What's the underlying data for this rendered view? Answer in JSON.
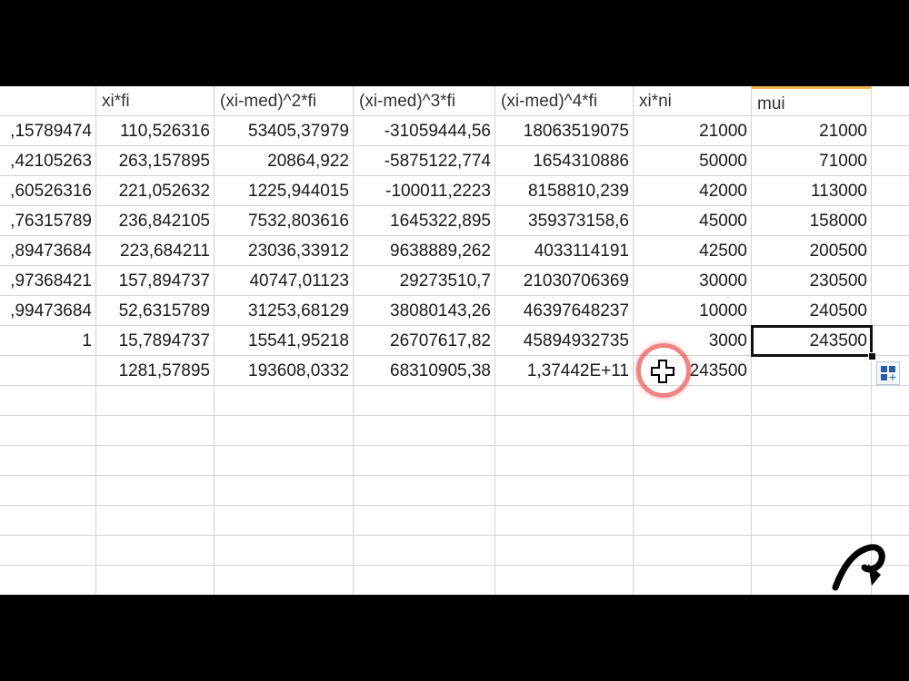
{
  "columns": [
    {
      "key": "A",
      "header": ""
    },
    {
      "key": "B",
      "header": "xi*fi"
    },
    {
      "key": "C",
      "header": "(xi-med)^2*fi"
    },
    {
      "key": "D",
      "header": "(xi-med)^3*fi"
    },
    {
      "key": "E",
      "header": "(xi-med)^4*fi"
    },
    {
      "key": "F",
      "header": "xi*ni"
    },
    {
      "key": "G",
      "header": "mui"
    },
    {
      "key": "H",
      "header": ""
    }
  ],
  "rows": [
    [
      ",15789474",
      "110,526316",
      "53405,37979",
      "-31059444,56",
      "18063519075",
      "21000",
      "21000",
      ""
    ],
    [
      ",42105263",
      "263,157895",
      "20864,922",
      "-5875122,774",
      "1654310886",
      "50000",
      "71000",
      ""
    ],
    [
      ",60526316",
      "221,052632",
      "1225,944015",
      "-100011,2223",
      "8158810,239",
      "42000",
      "113000",
      ""
    ],
    [
      ",76315789",
      "236,842105",
      "7532,803616",
      "1645322,895",
      "359373158,6",
      "45000",
      "158000",
      ""
    ],
    [
      ",89473684",
      "223,684211",
      "23036,33912",
      "9638889,262",
      "4033114191",
      "42500",
      "200500",
      ""
    ],
    [
      ",97368421",
      "157,894737",
      "40747,01123",
      "29273510,7",
      "21030706369",
      "30000",
      "230500",
      ""
    ],
    [
      ",99473684",
      "52,6315789",
      "31253,68129",
      "38080143,26",
      "46397648237",
      "10000",
      "240500",
      ""
    ],
    [
      "1",
      "15,7894737",
      "15541,95218",
      "26707617,82",
      "45894932735",
      "3000",
      "243500",
      ""
    ],
    [
      "",
      "1281,57895",
      "193608,0332",
      "68310905,38",
      "1,37442E+11",
      "243500",
      "",
      ""
    ],
    [
      "",
      "",
      "",
      "",
      "",
      "",
      "",
      ""
    ],
    [
      "",
      "",
      "",
      "",
      "",
      "",
      "",
      ""
    ],
    [
      "",
      "",
      "",
      "",
      "",
      "",
      "",
      ""
    ],
    [
      "",
      "",
      "",
      "",
      "",
      "",
      "",
      ""
    ],
    [
      "",
      "",
      "",
      "",
      "",
      "",
      "",
      ""
    ],
    [
      "",
      "",
      "",
      "",
      "",
      "",
      "",
      ""
    ],
    [
      "",
      "",
      "",
      "",
      "",
      "",
      "",
      ""
    ]
  ],
  "selected_cell": {
    "row": 7,
    "col": 6
  },
  "icons": {
    "autofill": "auto-fill-options-icon",
    "cursor": "fill-cross-cursor-icon",
    "logo": "channel-logo-icon"
  },
  "colors": {
    "active_header": "#f2b84b",
    "cursor_ring": "#eb5a5a",
    "gridline": "#d4d4d4"
  }
}
